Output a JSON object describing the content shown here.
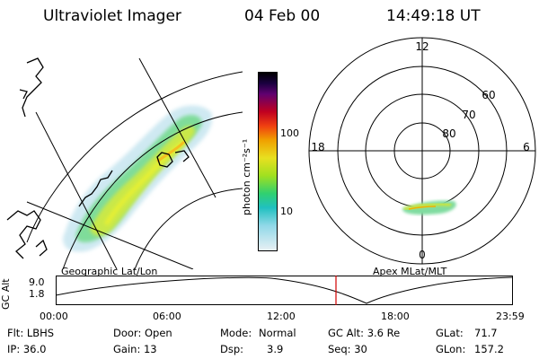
{
  "header": {
    "title": "Ultraviolet Imager",
    "date": "04 Feb 00",
    "time": "14:49:18 UT"
  },
  "geo_panel": {
    "label": "Geographic Lat/Lon"
  },
  "colorbar": {
    "unit_label": "photon cm⁻²s⁻¹",
    "ticks": [
      "100",
      "10"
    ]
  },
  "polar_panel": {
    "label": "Apex MLat/MLT",
    "mlt_labels": {
      "top": "12",
      "left": "18",
      "right": "6",
      "bottom": "0"
    },
    "lat_labels": [
      "60",
      "70",
      "80"
    ]
  },
  "altitude_plot": {
    "ylabel": "GC Alt",
    "yticks": [
      "9.0",
      "1.8"
    ],
    "xticks": [
      "00:00",
      "06:00",
      "12:00",
      "18:00",
      "23:59"
    ],
    "marker_color": "#d00000"
  },
  "footer": {
    "row1": {
      "filter": "Flt: LBHS",
      "door": "Door: Open",
      "mode_label": "Mode:",
      "mode_value": "Normal",
      "gc_alt": "GC Alt: 3.6 Re",
      "glat_label": "GLat:",
      "glat_value": "71.7"
    },
    "row2": {
      "ip": "IP: 36.0",
      "gain": "Gain: 13",
      "dsp_label": "Dsp:",
      "dsp_value": "3.9",
      "seq": "Seq: 30",
      "glon_label": "GLon:",
      "glon_value": "157.2"
    }
  }
}
